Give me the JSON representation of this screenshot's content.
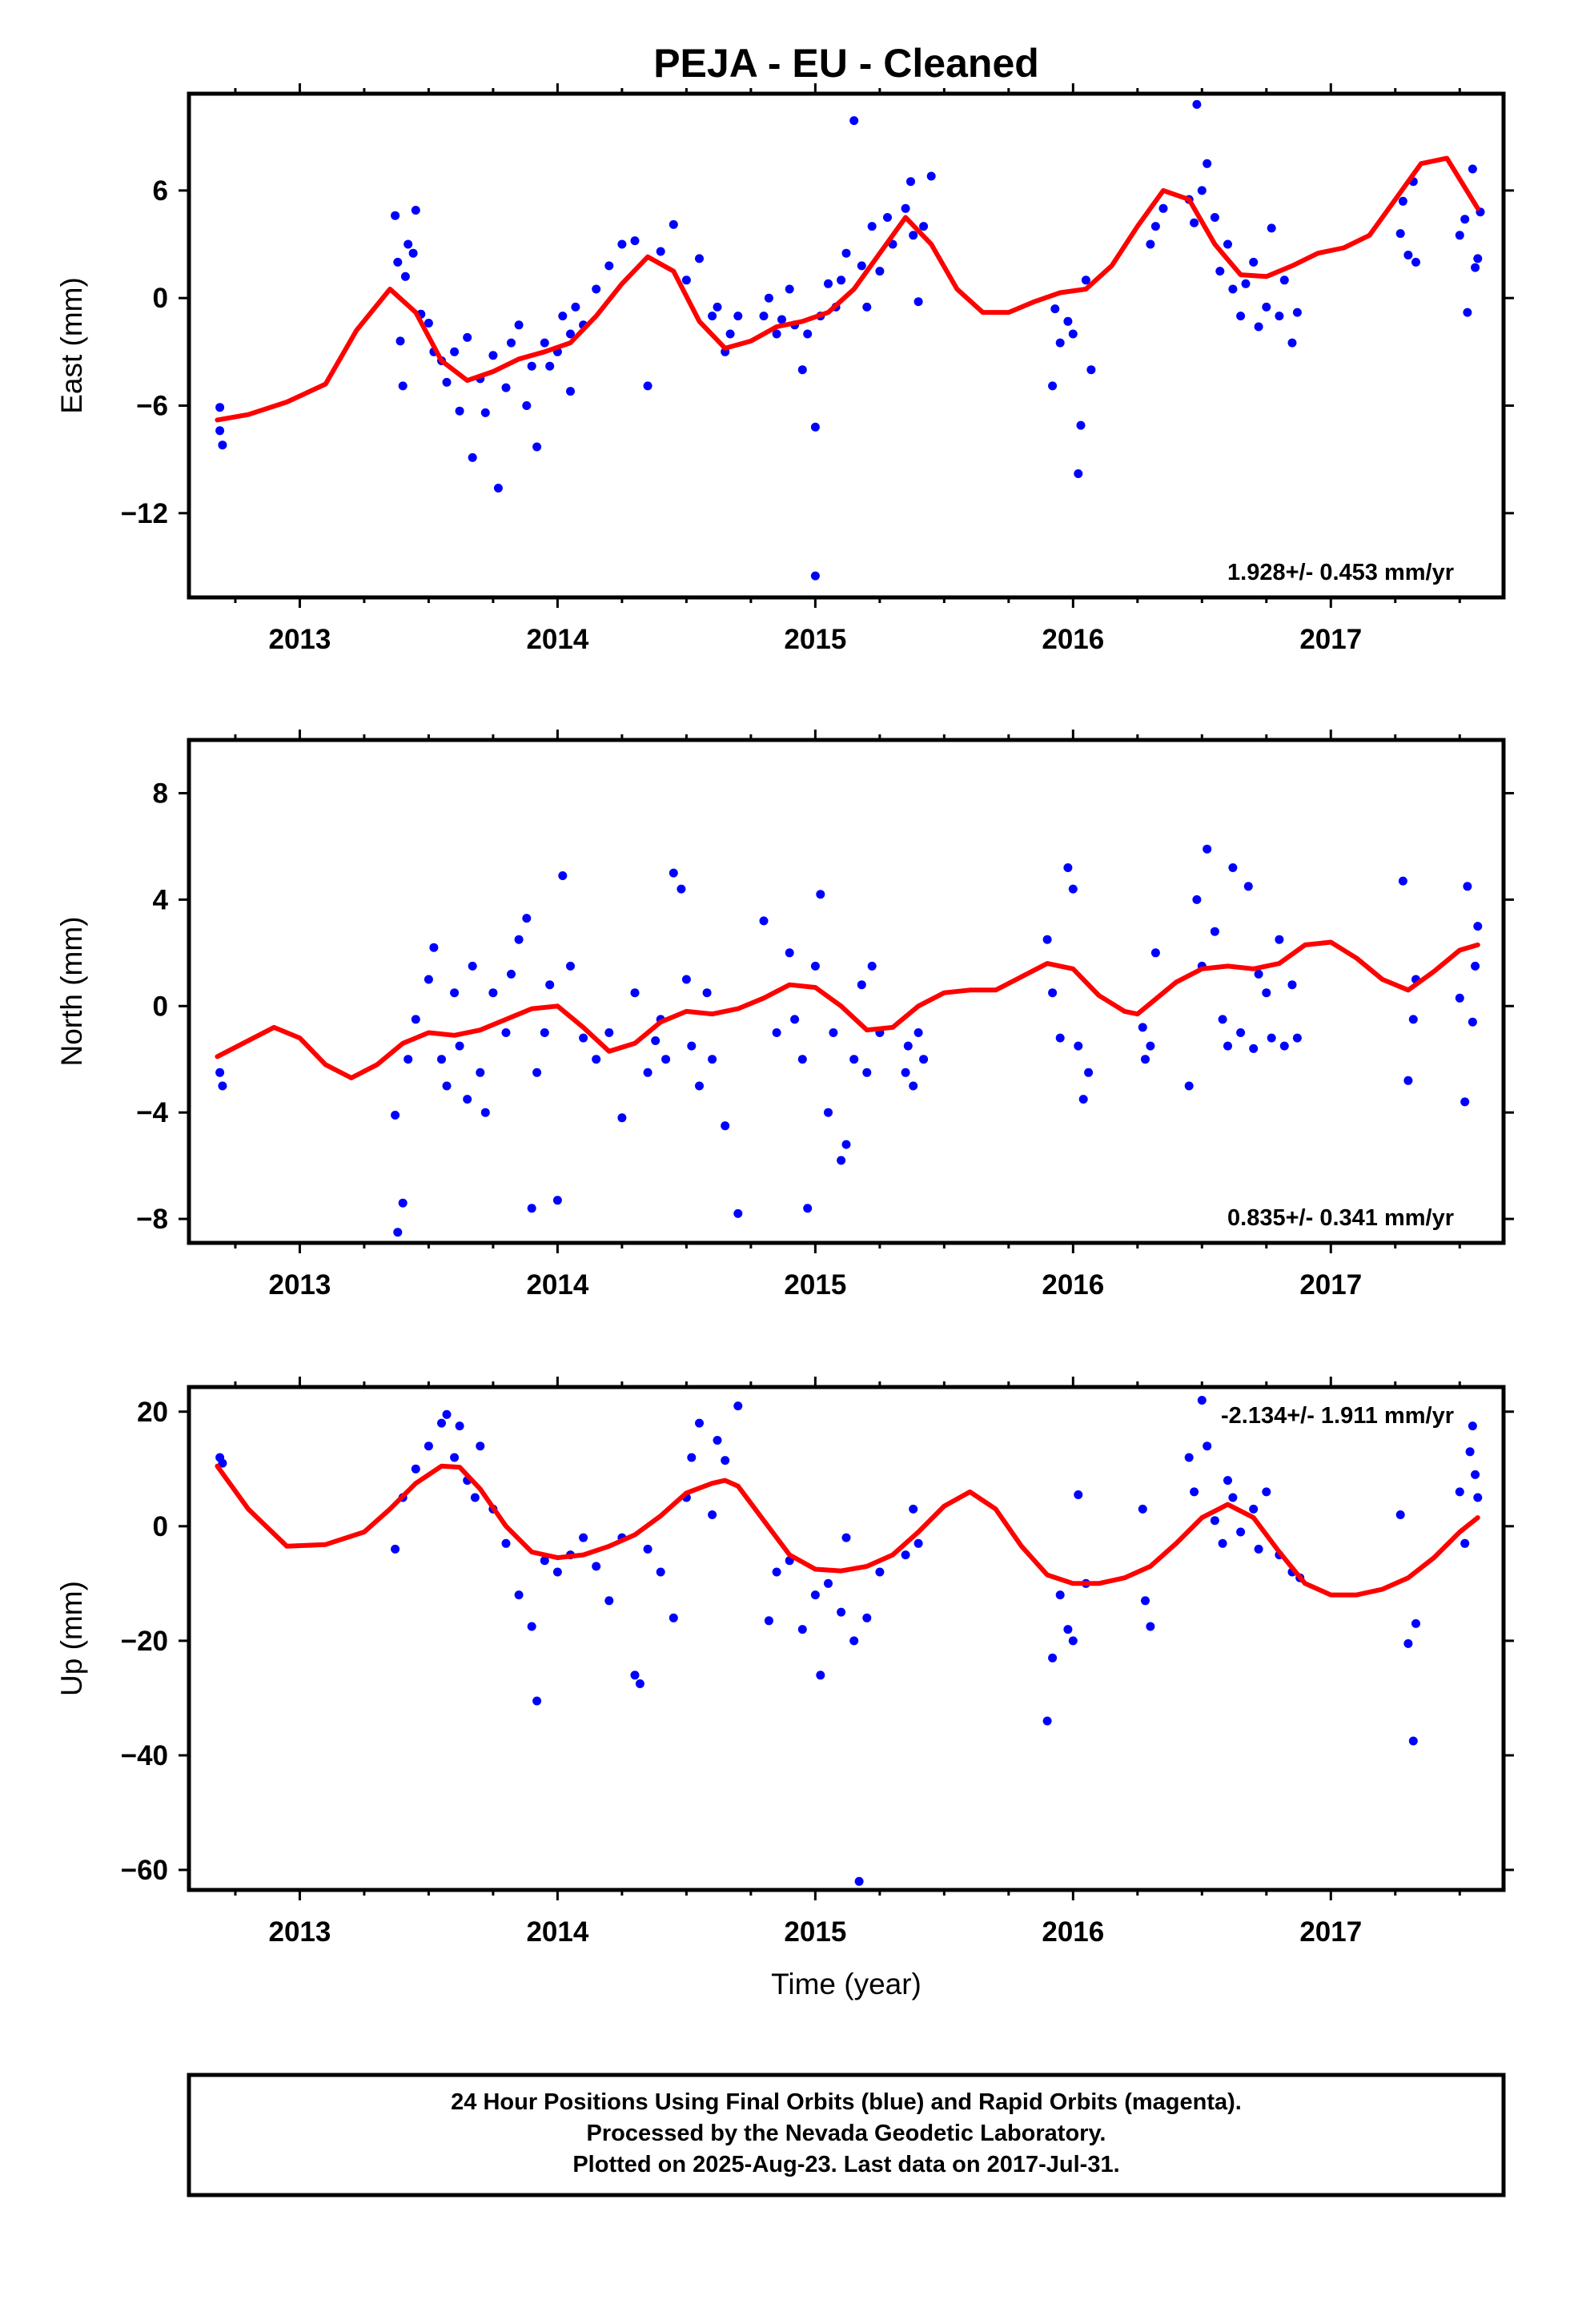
{
  "title": "PEJA  - EU - Cleaned",
  "colors": {
    "data": "#0000ff",
    "model": "#ff0000",
    "frame": "#000000"
  },
  "footer_lines": [
    "24 Hour Positions Using Final Orbits (blue) and Rapid Orbits (magenta).",
    "Processed by the Nevada Geodetic Laboratory.",
    "Plotted on 2025-Aug-23. Last data on 2017-Jul-31."
  ],
  "chart_data": [
    {
      "type": "scatter",
      "ylabel": "East (mm)",
      "xlabel": "",
      "xlim": [
        2012.57,
        2017.67
      ],
      "ylim": [
        -16.7,
        11.4
      ],
      "xticks": [
        2013,
        2014,
        2015,
        2016,
        2017
      ],
      "yticks": [
        6,
        0,
        -6,
        -12
      ],
      "ytick_labels": [
        "6",
        "0",
        "−6",
        "−12"
      ],
      "rate_label": "1.928+/- 0.453 mm/yr",
      "rate_position": "bottom-right",
      "model_curve": {
        "x": [
          2012.68,
          2012.8,
          2012.95,
          2013.1,
          2013.22,
          2013.35,
          2013.45,
          2013.55,
          2013.65,
          2013.75,
          2013.85,
          2013.95,
          2014.05,
          2014.15,
          2014.25,
          2014.35,
          2014.45,
          2014.55,
          2014.65,
          2014.75,
          2014.85,
          2014.95,
          2015.05,
          2015.15,
          2015.25,
          2015.35,
          2015.45,
          2015.55,
          2015.65,
          2015.75,
          2015.85,
          2015.95,
          2016.05,
          2016.15,
          2016.25,
          2016.35,
          2016.45,
          2016.55,
          2016.65,
          2016.75,
          2016.85,
          2016.95,
          2017.05,
          2017.15,
          2017.25,
          2017.35,
          2017.45,
          2017.57
        ],
        "y": [
          -6.8,
          -6.5,
          -5.8,
          -4.8,
          -1.8,
          0.5,
          -0.8,
          -3.5,
          -4.6,
          -4.1,
          -3.4,
          -3.0,
          -2.5,
          -1.0,
          0.8,
          2.3,
          1.5,
          -1.3,
          -2.8,
          -2.4,
          -1.6,
          -1.3,
          -0.8,
          0.5,
          2.5,
          4.5,
          3.0,
          0.5,
          -0.8,
          -0.8,
          -0.2,
          0.3,
          0.5,
          1.8,
          4.0,
          6.0,
          5.5,
          3.0,
          1.3,
          1.2,
          1.8,
          2.5,
          2.8,
          3.5,
          5.5,
          7.5,
          7.8,
          5.0
        ]
      },
      "points": {
        "x": [
          2012.69,
          2012.69,
          2012.7,
          2013.37,
          2013.38,
          2013.39,
          2013.4,
          2013.41,
          2013.42,
          2013.44,
          2013.45,
          2013.47,
          2013.5,
          2013.52,
          2013.55,
          2013.57,
          2013.6,
          2013.62,
          2013.65,
          2013.67,
          2013.7,
          2013.72,
          2013.75,
          2013.77,
          2013.8,
          2013.82,
          2013.85,
          2013.88,
          2013.9,
          2013.92,
          2013.95,
          2013.97,
          2014.0,
          2014.02,
          2014.05,
          2014.05,
          2014.07,
          2014.1,
          2014.15,
          2014.2,
          2014.25,
          2014.3,
          2014.35,
          2014.4,
          2014.45,
          2014.5,
          2014.55,
          2014.6,
          2014.62,
          2014.65,
          2014.67,
          2014.7,
          2014.8,
          2014.82,
          2014.85,
          2014.87,
          2014.9,
          2014.92,
          2014.95,
          2014.97,
          2015.0,
          2015.0,
          2015.02,
          2015.05,
          2015.08,
          2015.1,
          2015.12,
          2015.15,
          2015.18,
          2015.2,
          2015.22,
          2015.25,
          2015.28,
          2015.3,
          2015.35,
          2015.37,
          2015.38,
          2015.4,
          2015.42,
          2015.45,
          2015.92,
          2015.93,
          2015.95,
          2015.98,
          2016.0,
          2016.02,
          2016.03,
          2016.05,
          2016.07,
          2016.3,
          2016.32,
          2016.35,
          2016.45,
          2016.47,
          2016.48,
          2016.5,
          2016.52,
          2016.55,
          2016.57,
          2016.6,
          2016.62,
          2016.65,
          2016.67,
          2016.7,
          2016.72,
          2016.75,
          2016.77,
          2016.8,
          2016.82,
          2016.85,
          2016.87,
          2017.27,
          2017.28,
          2017.3,
          2017.32,
          2017.33,
          2017.5,
          2017.52,
          2017.53,
          2017.55,
          2017.56,
          2017.57,
          2017.58
        ],
        "y": [
          -6.1,
          -7.4,
          -8.2,
          4.6,
          2.0,
          -2.4,
          -4.9,
          1.2,
          3.0,
          2.5,
          4.9,
          -0.9,
          -1.4,
          -3.0,
          -3.5,
          -4.7,
          -3.0,
          -6.3,
          -2.2,
          -8.9,
          -4.5,
          -6.4,
          -3.2,
          -10.6,
          -5.0,
          -2.5,
          -1.5,
          -6.0,
          -3.8,
          -8.3,
          -2.5,
          -3.8,
          -3.0,
          -1.0,
          -2.0,
          -5.2,
          -0.5,
          -1.5,
          0.5,
          1.8,
          3.0,
          3.2,
          -4.9,
          2.6,
          4.1,
          1.0,
          2.2,
          -1.0,
          -0.5,
          -3.0,
          -2.0,
          -1.0,
          -1.0,
          0.0,
          -2.0,
          -1.2,
          0.5,
          -1.5,
          -4.0,
          -2.0,
          -15.5,
          -7.2,
          -1.0,
          0.8,
          -0.5,
          1.0,
          2.5,
          9.9,
          1.8,
          -0.5,
          4.0,
          1.5,
          4.5,
          3.0,
          5.0,
          6.5,
          3.5,
          -0.2,
          4.0,
          6.8,
          -4.9,
          -0.6,
          -2.5,
          -1.3,
          -2.0,
          -9.8,
          -7.1,
          1.0,
          -4.0,
          3.0,
          4.0,
          5.0,
          5.5,
          4.2,
          10.8,
          6.0,
          7.5,
          4.5,
          1.5,
          3.0,
          0.5,
          -1.0,
          0.8,
          2.0,
          -1.6,
          -0.5,
          3.9,
          -1.0,
          1.0,
          -2.5,
          -0.8,
          3.6,
          5.4,
          2.4,
          6.5,
          2.0,
          3.5,
          4.4,
          -0.8,
          7.2,
          1.7,
          2.2,
          4.8
        ]
      }
    },
    {
      "type": "scatter",
      "ylabel": "North (mm)",
      "xlabel": "",
      "xlim": [
        2012.57,
        2017.67
      ],
      "ylim": [
        -8.9,
        10.0
      ],
      "xticks": [
        2013,
        2014,
        2015,
        2016,
        2017
      ],
      "yticks": [
        8,
        4,
        0,
        -4,
        -8
      ],
      "ytick_labels": [
        "8",
        "4",
        "0",
        "−4",
        "−8"
      ],
      "rate_label": "0.835+/- 0.341 mm/yr",
      "rate_position": "bottom-right",
      "model_curve": {
        "x": [
          2012.68,
          2012.78,
          2012.9,
          2013.0,
          2013.1,
          2013.2,
          2013.3,
          2013.4,
          2013.5,
          2013.6,
          2013.7,
          2013.8,
          2013.9,
          2014.0,
          2014.1,
          2014.2,
          2014.3,
          2014.4,
          2014.5,
          2014.6,
          2014.7,
          2014.8,
          2014.9,
          2015.0,
          2015.1,
          2015.2,
          2015.3,
          2015.4,
          2015.5,
          2015.6,
          2015.7,
          2015.8,
          2015.9,
          2016.0,
          2016.1,
          2016.2,
          2016.25,
          2016.3,
          2016.4,
          2016.5,
          2016.6,
          2016.7,
          2016.8,
          2016.9,
          2017.0,
          2017.1,
          2017.2,
          2017.3,
          2017.4,
          2017.5,
          2017.57
        ],
        "y": [
          -1.9,
          -1.4,
          -0.8,
          -1.2,
          -2.2,
          -2.7,
          -2.2,
          -1.4,
          -1.0,
          -1.1,
          -0.9,
          -0.5,
          -0.1,
          0.0,
          -0.8,
          -1.7,
          -1.4,
          -0.6,
          -0.2,
          -0.3,
          -0.1,
          0.3,
          0.8,
          0.7,
          0.0,
          -0.9,
          -0.8,
          0.0,
          0.5,
          0.6,
          0.6,
          1.1,
          1.6,
          1.4,
          0.4,
          -0.2,
          -0.3,
          0.1,
          0.9,
          1.4,
          1.5,
          1.4,
          1.6,
          2.3,
          2.4,
          1.8,
          1.0,
          0.6,
          1.3,
          2.1,
          2.3
        ]
      },
      "points": {
        "x": [
          2012.69,
          2012.7,
          2013.37,
          2013.38,
          2013.4,
          2013.42,
          2013.45,
          2013.5,
          2013.52,
          2013.55,
          2013.57,
          2013.6,
          2013.62,
          2013.65,
          2013.67,
          2013.7,
          2013.72,
          2013.75,
          2013.8,
          2013.82,
          2013.85,
          2013.88,
          2013.9,
          2013.92,
          2013.95,
          2013.97,
          2014.0,
          2014.02,
          2014.05,
          2014.1,
          2014.15,
          2014.2,
          2014.25,
          2014.3,
          2014.35,
          2014.38,
          2014.4,
          2014.42,
          2014.45,
          2014.48,
          2014.5,
          2014.52,
          2014.55,
          2014.58,
          2014.6,
          2014.65,
          2014.7,
          2014.8,
          2014.85,
          2014.9,
          2014.92,
          2014.95,
          2014.97,
          2015.0,
          2015.02,
          2015.05,
          2015.07,
          2015.1,
          2015.12,
          2015.15,
          2015.18,
          2015.2,
          2015.22,
          2015.25,
          2015.35,
          2015.36,
          2015.38,
          2015.4,
          2015.42,
          2015.9,
          2015.92,
          2015.95,
          2015.98,
          2016.0,
          2016.02,
          2016.04,
          2016.06,
          2016.27,
          2016.28,
          2016.3,
          2016.32,
          2016.45,
          2016.48,
          2016.5,
          2016.52,
          2016.55,
          2016.58,
          2016.6,
          2016.62,
          2016.65,
          2016.68,
          2016.7,
          2016.72,
          2016.75,
          2016.77,
          2016.8,
          2016.82,
          2016.85,
          2016.87,
          2017.28,
          2017.3,
          2017.32,
          2017.33,
          2017.5,
          2017.52,
          2017.53,
          2017.55,
          2017.56,
          2017.57
        ],
        "y": [
          -2.5,
          -3.0,
          -4.1,
          -8.5,
          -7.4,
          -2.0,
          -0.5,
          1.0,
          2.2,
          -2.0,
          -3.0,
          0.5,
          -1.5,
          -3.5,
          1.5,
          -2.5,
          -4.0,
          0.5,
          -1.0,
          1.2,
          2.5,
          3.3,
          -7.6,
          -2.5,
          -1.0,
          0.8,
          -7.3,
          4.9,
          1.5,
          -1.2,
          -2.0,
          -1.0,
          -4.2,
          0.5,
          -2.5,
          -1.3,
          -0.5,
          -2.0,
          5.0,
          4.4,
          1.0,
          -1.5,
          -3.0,
          0.5,
          -2.0,
          -4.5,
          -7.8,
          3.2,
          -1.0,
          2.0,
          -0.5,
          -2.0,
          -7.6,
          1.5,
          4.2,
          -4.0,
          -1.0,
          -5.8,
          -5.2,
          -2.0,
          0.8,
          -2.5,
          1.5,
          -1.0,
          -2.5,
          -1.5,
          -3.0,
          -1.0,
          -2.0,
          2.5,
          0.5,
          -1.2,
          5.2,
          4.4,
          -1.5,
          -3.5,
          -2.5,
          -0.8,
          -2.0,
          -1.5,
          2.0,
          -3.0,
          4.0,
          1.5,
          5.9,
          2.8,
          -0.5,
          -1.5,
          5.2,
          -1.0,
          4.5,
          -1.6,
          1.2,
          0.5,
          -1.2,
          2.5,
          -1.5,
          0.8,
          -1.2,
          4.7,
          -2.8,
          -0.5,
          1.0,
          0.3,
          -3.6,
          4.5,
          -0.6,
          1.5,
          3.0
        ]
      }
    },
    {
      "type": "scatter",
      "ylabel": "Up (mm)",
      "xlabel": "Time (year)",
      "xlim": [
        2012.57,
        2017.67
      ],
      "ylim": [
        -63.5,
        24.3
      ],
      "xticks": [
        2013,
        2014,
        2015,
        2016,
        2017
      ],
      "yticks": [
        20,
        0,
        -20,
        -40,
        -60
      ],
      "ytick_labels": [
        "20",
        "0",
        "−20",
        "−40",
        "−60"
      ],
      "rate_label": "-2.134+/- 1.911 mm/yr",
      "rate_position": "top-right",
      "model_curve": {
        "x": [
          2012.68,
          2012.8,
          2012.95,
          2013.1,
          2013.25,
          2013.35,
          2013.45,
          2013.55,
          2013.62,
          2013.7,
          2013.8,
          2013.9,
          2014.0,
          2014.1,
          2014.2,
          2014.3,
          2014.4,
          2014.5,
          2014.6,
          2014.65,
          2014.7,
          2014.8,
          2014.9,
          2015.0,
          2015.1,
          2015.2,
          2015.3,
          2015.4,
          2015.5,
          2015.6,
          2015.7,
          2015.8,
          2015.9,
          2016.0,
          2016.1,
          2016.2,
          2016.3,
          2016.4,
          2016.5,
          2016.6,
          2016.7,
          2016.8,
          2016.9,
          2017.0,
          2017.1,
          2017.2,
          2017.3,
          2017.4,
          2017.5,
          2017.57
        ],
        "y": [
          10.5,
          3.0,
          -3.5,
          -3.2,
          -1.0,
          3.0,
          7.5,
          10.5,
          10.3,
          6.5,
          0.0,
          -4.5,
          -5.5,
          -5.0,
          -3.5,
          -1.5,
          1.8,
          5.8,
          7.5,
          8.0,
          7.0,
          1.0,
          -5.0,
          -7.5,
          -7.8,
          -7.0,
          -5.0,
          -1.0,
          3.5,
          6.0,
          3.0,
          -3.5,
          -8.5,
          -10.0,
          -10.0,
          -9.0,
          -7.0,
          -3.0,
          1.5,
          3.8,
          1.5,
          -4.5,
          -10.0,
          -12.0,
          -12.0,
          -11.0,
          -9.0,
          -5.5,
          -1.0,
          1.5
        ]
      },
      "points": {
        "x": [
          2012.69,
          2012.7,
          2013.37,
          2013.4,
          2013.45,
          2013.5,
          2013.55,
          2013.57,
          2013.6,
          2013.62,
          2013.65,
          2013.68,
          2013.7,
          2013.75,
          2013.8,
          2013.85,
          2013.9,
          2013.92,
          2013.95,
          2014.0,
          2014.05,
          2014.1,
          2014.15,
          2014.2,
          2014.25,
          2014.3,
          2014.32,
          2014.35,
          2014.4,
          2014.45,
          2014.5,
          2014.52,
          2014.55,
          2014.6,
          2014.62,
          2014.65,
          2014.7,
          2014.82,
          2014.85,
          2014.9,
          2014.95,
          2015.0,
          2015.02,
          2015.05,
          2015.1,
          2015.12,
          2015.15,
          2015.17,
          2015.2,
          2015.25,
          2015.35,
          2015.38,
          2015.4,
          2015.9,
          2015.92,
          2015.95,
          2015.98,
          2016.0,
          2016.02,
          2016.05,
          2016.27,
          2016.28,
          2016.3,
          2016.45,
          2016.47,
          2016.5,
          2016.52,
          2016.55,
          2016.58,
          2016.6,
          2016.62,
          2016.65,
          2016.7,
          2016.72,
          2016.75,
          2016.8,
          2016.85,
          2016.88,
          2017.27,
          2017.3,
          2017.32,
          2017.33,
          2017.5,
          2017.52,
          2017.54,
          2017.55,
          2017.56,
          2017.57
        ],
        "y": [
          12.0,
          11.0,
          -4.0,
          5.0,
          10.0,
          14.0,
          18.0,
          19.5,
          12.0,
          17.5,
          8.0,
          5.0,
          14.0,
          3.0,
          -3.0,
          -12.0,
          -17.5,
          -30.5,
          -6.0,
          -8.0,
          -5.0,
          -2.0,
          -7.0,
          -13.0,
          -2.0,
          -26.0,
          -27.5,
          -4.0,
          -8.0,
          -16.0,
          5.0,
          12.0,
          18.0,
          2.0,
          15.0,
          11.5,
          21.0,
          -16.5,
          -8.0,
          -6.0,
          -18.0,
          -12.0,
          -26.0,
          -10.0,
          -15.0,
          -2.0,
          -20.0,
          -62.0,
          -16.0,
          -8.0,
          -5.0,
          3.0,
          -3.0,
          -34.0,
          -23.0,
          -12.0,
          -18.0,
          -20.0,
          5.5,
          -10.0,
          3.0,
          -13.0,
          -17.5,
          12.0,
          6.0,
          22.0,
          14.0,
          1.0,
          -3.0,
          8.0,
          5.0,
          -1.0,
          3.0,
          -4.0,
          6.0,
          -5.0,
          -8.0,
          -9.0,
          2.0,
          -20.5,
          -37.5,
          -17.0,
          6.0,
          -3.0,
          13.0,
          17.5,
          9.0,
          5.0
        ]
      }
    }
  ]
}
